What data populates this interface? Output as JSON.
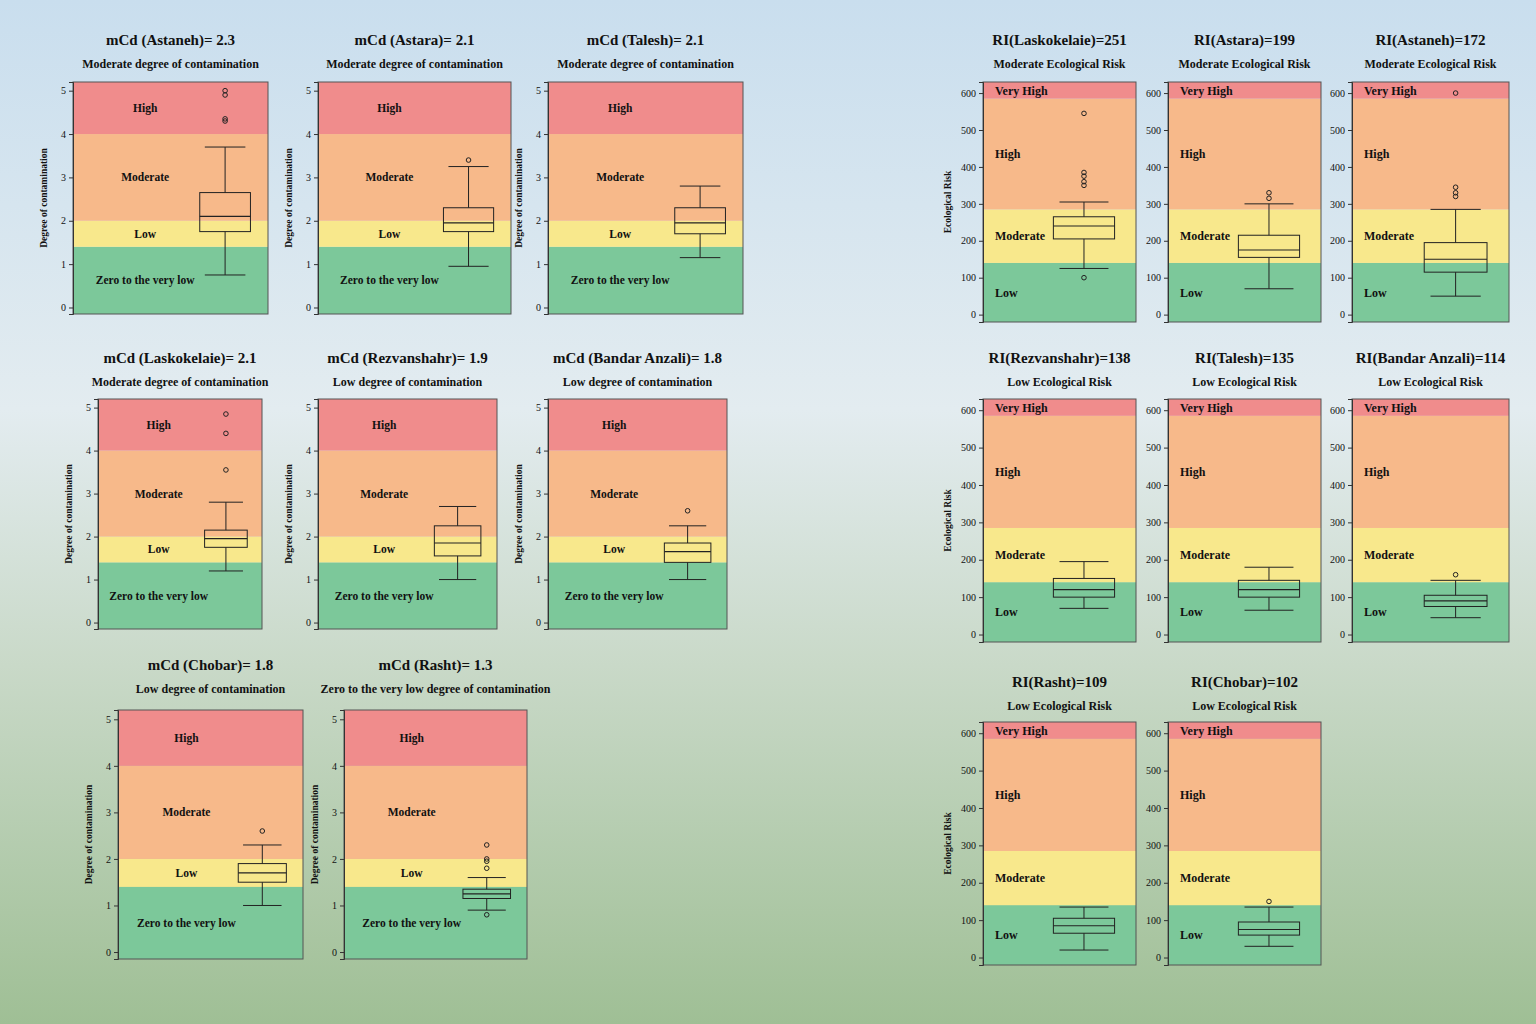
{
  "chart_data": [
    {
      "type": "box",
      "title": "mCd (Astaneh)= 2.3",
      "subtitle": "Moderate degree of contamination",
      "y_label": "Degree of contamination",
      "ylim": [
        -0.15,
        5.2
      ],
      "yticks": [
        0,
        1,
        2,
        3,
        4,
        5
      ],
      "bands": [
        {
          "label": "Zero to the very low",
          "from": -0.15,
          "to": 1.4,
          "color": "#7cc89a"
        },
        {
          "label": "Low",
          "from": 1.4,
          "to": 2,
          "color": "#f8e88c"
        },
        {
          "label": "Moderate",
          "from": 2,
          "to": 4,
          "color": "#f7b98a"
        },
        {
          "label": "High",
          "from": 4,
          "to": 5.2,
          "color": "#f08c8c"
        }
      ],
      "box": {
        "min": 0.75,
        "q1": 1.75,
        "median": 2.1,
        "q3": 2.65,
        "max": 3.7,
        "outliers": [
          4.3,
          4.35,
          4.9,
          5.0
        ]
      }
    },
    {
      "type": "box",
      "title": "mCd (Astara)= 2.1",
      "subtitle": "Moderate degree of contamination",
      "y_label": "Degree of contamination",
      "ylim": [
        -0.15,
        5.2
      ],
      "yticks": [
        0,
        1,
        2,
        3,
        4,
        5
      ],
      "bands": [
        {
          "label": "Zero to the very low",
          "from": -0.15,
          "to": 1.4,
          "color": "#7cc89a"
        },
        {
          "label": "Low",
          "from": 1.4,
          "to": 2,
          "color": "#f8e88c"
        },
        {
          "label": "Moderate",
          "from": 2,
          "to": 4,
          "color": "#f7b98a"
        },
        {
          "label": "High",
          "from": 4,
          "to": 5.2,
          "color": "#f08c8c"
        }
      ],
      "box": {
        "min": 0.95,
        "q1": 1.75,
        "median": 1.95,
        "q3": 2.3,
        "max": 3.25,
        "outliers": [
          3.4
        ]
      }
    },
    {
      "type": "box",
      "title": "mCd (Talesh)= 2.1",
      "subtitle": "Moderate degree of contamination",
      "y_label": "Degree of contamination",
      "ylim": [
        -0.15,
        5.2
      ],
      "yticks": [
        0,
        1,
        2,
        3,
        4,
        5
      ],
      "bands": [
        {
          "label": "Zero to the very low",
          "from": -0.15,
          "to": 1.4,
          "color": "#7cc89a"
        },
        {
          "label": "Low",
          "from": 1.4,
          "to": 2,
          "color": "#f8e88c"
        },
        {
          "label": "Moderate",
          "from": 2,
          "to": 4,
          "color": "#f7b98a"
        },
        {
          "label": "High",
          "from": 4,
          "to": 5.2,
          "color": "#f08c8c"
        }
      ],
      "box": {
        "min": 1.15,
        "q1": 1.7,
        "median": 1.95,
        "q3": 2.3,
        "max": 2.8,
        "outliers": []
      }
    },
    {
      "type": "box",
      "title": "mCd (Laskokelaie)= 2.1",
      "subtitle": "Moderate degree of contamination",
      "y_label": "Degree of contamination",
      "ylim": [
        -0.15,
        5.2
      ],
      "yticks": [
        0,
        1,
        2,
        3,
        4,
        5
      ],
      "bands": [
        {
          "label": "Zero to the very low",
          "from": -0.15,
          "to": 1.4,
          "color": "#7cc89a"
        },
        {
          "label": "Low",
          "from": 1.4,
          "to": 2,
          "color": "#f8e88c"
        },
        {
          "label": "Moderate",
          "from": 2,
          "to": 4,
          "color": "#f7b98a"
        },
        {
          "label": "High",
          "from": 4,
          "to": 5.2,
          "color": "#f08c8c"
        }
      ],
      "box": {
        "min": 1.2,
        "q1": 1.75,
        "median": 1.95,
        "q3": 2.15,
        "max": 2.8,
        "outliers": [
          3.55,
          4.4,
          4.85
        ]
      }
    },
    {
      "type": "box",
      "title": "mCd (Rezvanshahr)= 1.9",
      "subtitle": "Low degree of contamination",
      "y_label": "Degree of contamination",
      "ylim": [
        -0.15,
        5.2
      ],
      "yticks": [
        0,
        1,
        2,
        3,
        4,
        5
      ],
      "bands": [
        {
          "label": "Zero to the very low",
          "from": -0.15,
          "to": 1.4,
          "color": "#7cc89a"
        },
        {
          "label": "Low",
          "from": 1.4,
          "to": 2,
          "color": "#f8e88c"
        },
        {
          "label": "Moderate",
          "from": 2,
          "to": 4,
          "color": "#f7b98a"
        },
        {
          "label": "High",
          "from": 4,
          "to": 5.2,
          "color": "#f08c8c"
        }
      ],
      "box": {
        "min": 1.0,
        "q1": 1.55,
        "median": 1.85,
        "q3": 2.25,
        "max": 2.7,
        "outliers": []
      }
    },
    {
      "type": "box",
      "title": "mCd (Bandar Anzali)= 1.8",
      "subtitle": "Low degree of contamination",
      "y_label": "Degree of contamination",
      "ylim": [
        -0.15,
        5.2
      ],
      "yticks": [
        0,
        1,
        2,
        3,
        4,
        5
      ],
      "bands": [
        {
          "label": "Zero to the very low",
          "from": -0.15,
          "to": 1.4,
          "color": "#7cc89a"
        },
        {
          "label": "Low",
          "from": 1.4,
          "to": 2,
          "color": "#f8e88c"
        },
        {
          "label": "Moderate",
          "from": 2,
          "to": 4,
          "color": "#f7b98a"
        },
        {
          "label": "High",
          "from": 4,
          "to": 5.2,
          "color": "#f08c8c"
        }
      ],
      "box": {
        "min": 1.0,
        "q1": 1.4,
        "median": 1.65,
        "q3": 1.85,
        "max": 2.25,
        "outliers": [
          2.6
        ]
      }
    },
    {
      "type": "box",
      "title": "mCd (Chobar)= 1.8",
      "subtitle": "Low degree of contamination",
      "y_label": "Degree of contamination",
      "ylim": [
        -0.15,
        5.2
      ],
      "yticks": [
        0,
        1,
        2,
        3,
        4,
        5
      ],
      "bands": [
        {
          "label": "Zero to the very low",
          "from": -0.15,
          "to": 1.4,
          "color": "#7cc89a"
        },
        {
          "label": "Low",
          "from": 1.4,
          "to": 2,
          "color": "#f8e88c"
        },
        {
          "label": "Moderate",
          "from": 2,
          "to": 4,
          "color": "#f7b98a"
        },
        {
          "label": "High",
          "from": 4,
          "to": 5.2,
          "color": "#f08c8c"
        }
      ],
      "box": {
        "min": 1.0,
        "q1": 1.5,
        "median": 1.7,
        "q3": 1.9,
        "max": 2.3,
        "outliers": [
          2.6
        ]
      }
    },
    {
      "type": "box",
      "title": "mCd (Rasht)= 1.3",
      "subtitle": "Zero to the very low degree of contamination",
      "y_label": "Degree of contamination",
      "ylim": [
        -0.15,
        5.2
      ],
      "yticks": [
        0,
        1,
        2,
        3,
        4,
        5
      ],
      "bands": [
        {
          "label": "Zero to the very low",
          "from": -0.15,
          "to": 1.4,
          "color": "#7cc89a"
        },
        {
          "label": "Low",
          "from": 1.4,
          "to": 2,
          "color": "#f8e88c"
        },
        {
          "label": "Moderate",
          "from": 2,
          "to": 4,
          "color": "#f7b98a"
        },
        {
          "label": "High",
          "from": 4,
          "to": 5.2,
          "color": "#f08c8c"
        }
      ],
      "box": {
        "min": 0.9,
        "q1": 1.15,
        "median": 1.25,
        "q3": 1.35,
        "max": 1.6,
        "outliers": [
          0.8,
          1.8,
          1.95,
          2.0,
          2.3
        ]
      }
    },
    {
      "type": "box",
      "title": "RI(Laskokelaie)=251",
      "subtitle": "Moderate Ecological Risk",
      "y_label": "Ecological Risk",
      "ylim": [
        -20,
        630
      ],
      "yticks": [
        0,
        100,
        200,
        300,
        400,
        500,
        600
      ],
      "bands": [
        {
          "label": "Low",
          "from": -20,
          "to": 140,
          "color": "#7cc89a"
        },
        {
          "label": "Moderate",
          "from": 140,
          "to": 285,
          "color": "#f8e88c"
        },
        {
          "label": "High",
          "from": 285,
          "to": 585,
          "color": "#f7b98a"
        },
        {
          "label": "Very High",
          "from": 585,
          "to": 630,
          "color": "#f08c8c"
        }
      ],
      "box": {
        "min": 125,
        "q1": 205,
        "median": 240,
        "q3": 265,
        "max": 305,
        "outliers": [
          100,
          350,
          360,
          375,
          385,
          545
        ]
      }
    },
    {
      "type": "box",
      "title": "RI(Astara)=199",
      "subtitle": "Moderate Ecological Risk",
      "ylim": [
        -20,
        630
      ],
      "yticks": [
        0,
        100,
        200,
        300,
        400,
        500,
        600
      ],
      "bands": [
        {
          "label": "Low",
          "from": -20,
          "to": 140,
          "color": "#7cc89a"
        },
        {
          "label": "Moderate",
          "from": 140,
          "to": 285,
          "color": "#f8e88c"
        },
        {
          "label": "High",
          "from": 285,
          "to": 585,
          "color": "#f7b98a"
        },
        {
          "label": "Very High",
          "from": 585,
          "to": 630,
          "color": "#f08c8c"
        }
      ],
      "box": {
        "min": 70,
        "q1": 155,
        "median": 175,
        "q3": 215,
        "max": 300,
        "outliers": [
          315,
          330
        ]
      }
    },
    {
      "type": "box",
      "title": "RI(Astaneh)=172",
      "subtitle": "Moderate Ecological Risk",
      "ylim": [
        -20,
        630
      ],
      "yticks": [
        0,
        100,
        200,
        300,
        400,
        500,
        600
      ],
      "bands": [
        {
          "label": "Low",
          "from": -20,
          "to": 140,
          "color": "#7cc89a"
        },
        {
          "label": "Moderate",
          "from": 140,
          "to": 285,
          "color": "#f8e88c"
        },
        {
          "label": "High",
          "from": 285,
          "to": 585,
          "color": "#f7b98a"
        },
        {
          "label": "Very High",
          "from": 585,
          "to": 630,
          "color": "#f08c8c"
        }
      ],
      "box": {
        "min": 50,
        "q1": 115,
        "median": 150,
        "q3": 195,
        "max": 285,
        "outliers": [
          320,
          330,
          345,
          600
        ]
      }
    },
    {
      "type": "box",
      "title": "RI(Rezvanshahr)=138",
      "subtitle": "Low Ecological Risk",
      "y_label": "Ecological Risk",
      "ylim": [
        -20,
        630
      ],
      "yticks": [
        0,
        100,
        200,
        300,
        400,
        500,
        600
      ],
      "bands": [
        {
          "label": "Low",
          "from": -20,
          "to": 140,
          "color": "#7cc89a"
        },
        {
          "label": "Moderate",
          "from": 140,
          "to": 285,
          "color": "#f8e88c"
        },
        {
          "label": "High",
          "from": 285,
          "to": 585,
          "color": "#f7b98a"
        },
        {
          "label": "Very High",
          "from": 585,
          "to": 630,
          "color": "#f08c8c"
        }
      ],
      "box": {
        "min": 70,
        "q1": 100,
        "median": 120,
        "q3": 150,
        "max": 195,
        "outliers": []
      }
    },
    {
      "type": "box",
      "title": "RI(Talesh)=135",
      "subtitle": "Low Ecological Risk",
      "ylim": [
        -20,
        630
      ],
      "yticks": [
        0,
        100,
        200,
        300,
        400,
        500,
        600
      ],
      "bands": [
        {
          "label": "Low",
          "from": -20,
          "to": 140,
          "color": "#7cc89a"
        },
        {
          "label": "Moderate",
          "from": 140,
          "to": 285,
          "color": "#f8e88c"
        },
        {
          "label": "High",
          "from": 285,
          "to": 585,
          "color": "#f7b98a"
        },
        {
          "label": "Very High",
          "from": 585,
          "to": 630,
          "color": "#f08c8c"
        }
      ],
      "box": {
        "min": 65,
        "q1": 100,
        "median": 120,
        "q3": 145,
        "max": 180,
        "outliers": []
      }
    },
    {
      "type": "box",
      "title": "RI(Bandar Anzali)=114",
      "subtitle": "Low Ecological Risk",
      "ylim": [
        -20,
        630
      ],
      "yticks": [
        0,
        100,
        200,
        300,
        400,
        500,
        600
      ],
      "bands": [
        {
          "label": "Low",
          "from": -20,
          "to": 140,
          "color": "#7cc89a"
        },
        {
          "label": "Moderate",
          "from": 140,
          "to": 285,
          "color": "#f8e88c"
        },
        {
          "label": "High",
          "from": 285,
          "to": 585,
          "color": "#f7b98a"
        },
        {
          "label": "Very High",
          "from": 585,
          "to": 630,
          "color": "#f08c8c"
        }
      ],
      "box": {
        "min": 45,
        "q1": 75,
        "median": 90,
        "q3": 105,
        "max": 145,
        "outliers": [
          160
        ]
      }
    },
    {
      "type": "box",
      "title": "RI(Rasht)=109",
      "subtitle": "Low Ecological Risk",
      "y_label": "Ecological Risk",
      "ylim": [
        -20,
        630
      ],
      "yticks": [
        0,
        100,
        200,
        300,
        400,
        500,
        600
      ],
      "bands": [
        {
          "label": "Low",
          "from": -20,
          "to": 140,
          "color": "#7cc89a"
        },
        {
          "label": "Moderate",
          "from": 140,
          "to": 285,
          "color": "#f8e88c"
        },
        {
          "label": "High",
          "from": 285,
          "to": 585,
          "color": "#f7b98a"
        },
        {
          "label": "Very High",
          "from": 585,
          "to": 630,
          "color": "#f08c8c"
        }
      ],
      "box": {
        "min": 20,
        "q1": 65,
        "median": 85,
        "q3": 105,
        "max": 135,
        "outliers": []
      }
    },
    {
      "type": "box",
      "title": "RI(Chobar)=102",
      "subtitle": "Low Ecological Risk",
      "ylim": [
        -20,
        630
      ],
      "yticks": [
        0,
        100,
        200,
        300,
        400,
        500,
        600
      ],
      "bands": [
        {
          "label": "Low",
          "from": -20,
          "to": 140,
          "color": "#7cc89a"
        },
        {
          "label": "Moderate",
          "from": 140,
          "to": 285,
          "color": "#f8e88c"
        },
        {
          "label": "High",
          "from": 285,
          "to": 585,
          "color": "#f7b98a"
        },
        {
          "label": "Very High",
          "from": 585,
          "to": 630,
          "color": "#f08c8c"
        }
      ],
      "box": {
        "min": 30,
        "q1": 60,
        "median": 75,
        "q3": 95,
        "max": 135,
        "outliers": [
          150
        ]
      }
    }
  ]
}
